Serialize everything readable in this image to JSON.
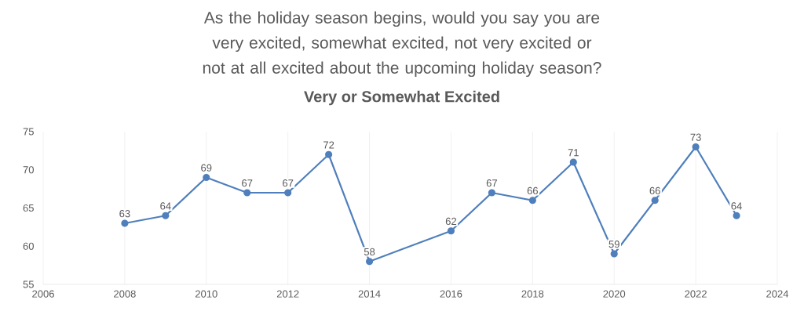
{
  "chart_data": {
    "type": "line",
    "title": "As the holiday season begins, would you say you are very excited, somewhat excited, not very excited or not at all excited about the upcoming holiday season?",
    "subtitle": "Very or Somewhat Excited",
    "x": [
      2008,
      2009,
      2010,
      2011,
      2012,
      2013,
      2014,
      2016,
      2017,
      2018,
      2019,
      2020,
      2021,
      2022,
      2023
    ],
    "values": [
      63,
      64,
      69,
      67,
      67,
      72,
      58,
      62,
      67,
      66,
      71,
      59,
      66,
      73,
      64
    ],
    "color": "#4f7fbc",
    "xlim": [
      2006,
      2024
    ],
    "xticks": [
      2006,
      2008,
      2010,
      2012,
      2014,
      2016,
      2018,
      2020,
      2022,
      2024
    ],
    "ylim": [
      55,
      75
    ],
    "yticks": [
      55,
      60,
      65,
      70,
      75
    ],
    "grid": "x",
    "marker": "circle",
    "line_style": "solid",
    "data_labels": true
  }
}
